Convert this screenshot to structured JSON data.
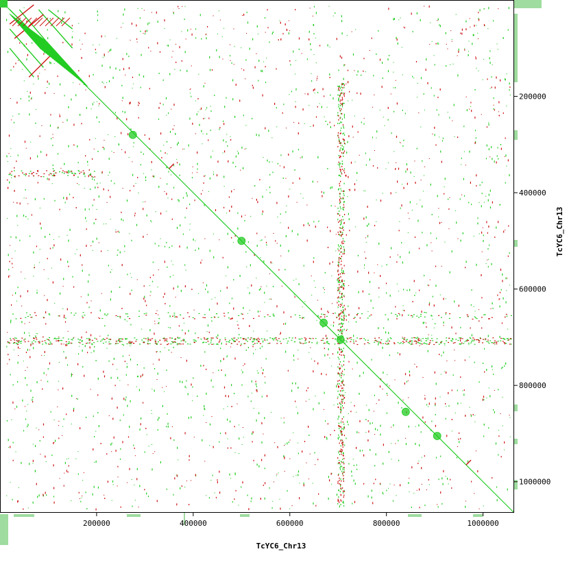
{
  "chart_data": {
    "type": "scatter",
    "title": "",
    "xlabel": "TcYC6_Chr13",
    "ylabel": "TcYC6_Chr13",
    "xlim": [
      0,
      1063000
    ],
    "ylim": [
      0,
      1063000
    ],
    "y_axis_inverted": true,
    "x_ticks": [
      200000,
      400000,
      600000,
      800000,
      1000000
    ],
    "x_tick_labels": [
      "200000",
      "400000",
      "600000",
      "800000",
      "1000000"
    ],
    "y_ticks": [
      200000,
      400000,
      600000,
      800000,
      1000000
    ],
    "y_tick_labels": [
      "200000",
      "400000",
      "600000",
      "800000",
      "1000000"
    ],
    "grid": false,
    "legend": "none",
    "colors": {
      "forward": "#22cc22",
      "reverse": "#cc1111",
      "track": "#9fdc9f",
      "frame": "#000000"
    },
    "series": [
      {
        "name": "",
        "color": "#22cc22",
        "segments": [
          [
            0,
            0,
            1063000,
            1063000
          ]
        ],
        "blobs": [
          [
            275000,
            280000
          ],
          [
            500000,
            500000
          ],
          [
            670000,
            670000
          ],
          [
            705000,
            705000
          ],
          [
            840000,
            855000
          ],
          [
            905000,
            905000
          ]
        ]
      },
      {
        "name": "",
        "color": "#22cc22",
        "segments": [
          [
            20000,
            20000,
            110000,
            110000
          ],
          [
            40000,
            20000,
            150000,
            150000
          ],
          [
            80000,
            20000,
            150000,
            100000
          ],
          [
            20000,
            60000,
            90000,
            140000
          ],
          [
            100000,
            20000,
            150000,
            60000
          ],
          [
            20000,
            100000,
            70000,
            160000
          ]
        ]
      },
      {
        "name": "",
        "color": "#cc1111",
        "segments": [
          [
            20000,
            50000,
            70000,
            10000
          ],
          [
            30000,
            80000,
            90000,
            30000
          ],
          [
            60000,
            160000,
            110000,
            110000
          ],
          [
            350000,
            350000,
            360000,
            340000
          ],
          [
            965000,
            965000,
            975000,
            955000
          ]
        ]
      }
    ]
  }
}
